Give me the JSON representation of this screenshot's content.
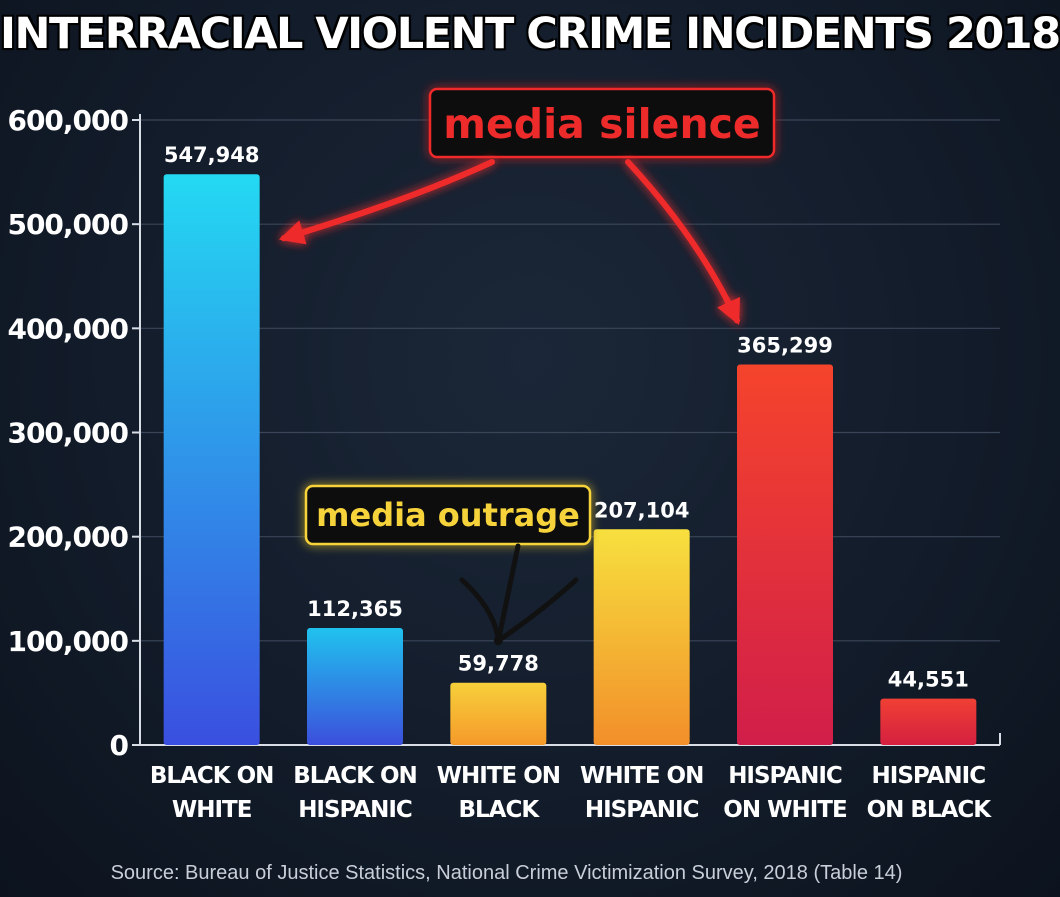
{
  "colors": {
    "background": "#131c2a",
    "grid": "#3a4658",
    "axis": "#d8dde6",
    "silence_red": "#ee2b2b",
    "outrage_yellow": "#f6d33b",
    "outrage_arrow": "#111111"
  },
  "chart_data": {
    "type": "bar",
    "title": "INTERRACIAL VIOLENT CRIME INCIDENTS 2018",
    "xlabel": "",
    "ylabel": "",
    "ylim": [
      0,
      600000
    ],
    "yticks": [
      0,
      100000,
      200000,
      300000,
      400000,
      500000,
      600000
    ],
    "ytick_labels": [
      "0",
      "100,000",
      "200,000",
      "300,000",
      "400,000",
      "500,000",
      "600,000"
    ],
    "grid": true,
    "categories": [
      [
        "BLACK ON",
        "WHITE"
      ],
      [
        "BLACK ON",
        "HISPANIC"
      ],
      [
        "WHITE ON",
        "BLACK"
      ],
      [
        "WHITE ON",
        "HISPANIC"
      ],
      [
        "HISPANIC",
        "ON WHITE"
      ],
      [
        "HISPANIC",
        "ON BLACK"
      ]
    ],
    "values": [
      547948,
      112365,
      59778,
      207104,
      365299,
      44551
    ],
    "value_labels": [
      "547,948",
      "112,365",
      "59,778",
      "207,104",
      "365,299",
      "44,551"
    ],
    "bar_gradients": [
      [
        "#24d9f2",
        "#3a4fe0"
      ],
      [
        "#20c2ee",
        "#3c4fdc"
      ],
      [
        "#f7d03a",
        "#f59a2a"
      ],
      [
        "#f7e03e",
        "#f28f2a"
      ],
      [
        "#f5442c",
        "#d11e4a"
      ],
      [
        "#f04034",
        "#d52040"
      ]
    ],
    "annotations": [
      {
        "text": "media silence",
        "points_to": [
          0,
          4
        ],
        "color": "red"
      },
      {
        "text": "media outrage",
        "points_to": [
          2
        ],
        "color": "yellow"
      }
    ]
  },
  "source": "Source: Bureau of Justice Statistics, National Crime Victimization Survey, 2018 (Table 14)"
}
